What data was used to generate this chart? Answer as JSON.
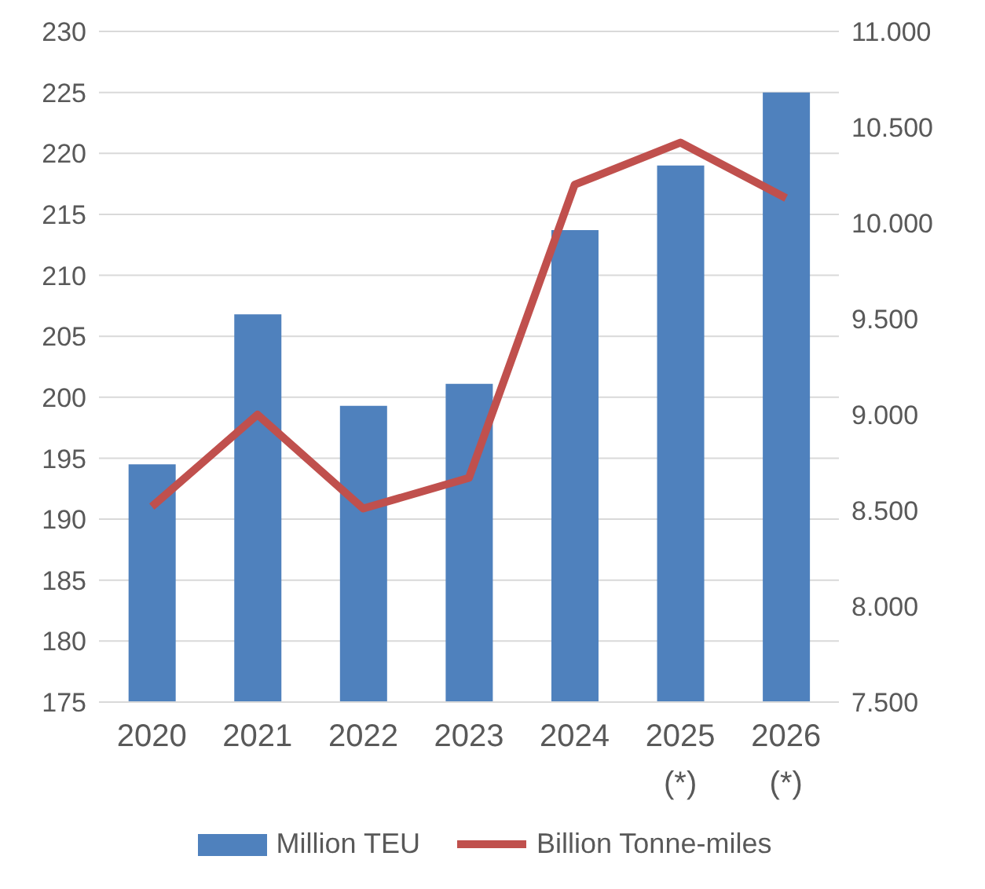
{
  "chart_data": {
    "type": "bar",
    "categories": [
      "2020",
      "2021",
      "2022",
      "2023",
      "2024",
      "2025\n(*)",
      "2026\n(*)"
    ],
    "series": [
      {
        "name": "Million TEU",
        "color": "#4f81bd",
        "values": [
          194.5,
          206.8,
          199.3,
          201.1,
          213.7,
          219.0,
          225.0
        ]
      },
      {
        "name": "Billion Tonne-miles",
        "type": "line",
        "axis": "y2",
        "color": "#c0504d",
        "values": [
          8520,
          9000,
          8510,
          8670,
          10200,
          10420,
          10130
        ]
      }
    ],
    "ylim": [
      175,
      230
    ],
    "yticks": [
      175,
      180,
      185,
      190,
      195,
      200,
      205,
      210,
      215,
      220,
      225,
      230
    ],
    "y2lim": [
      7500,
      11000
    ],
    "y2ticks": [
      {
        "value": 7500,
        "label": "7.500"
      },
      {
        "value": 8000,
        "label": "8.000"
      },
      {
        "value": 8500,
        "label": "8.500"
      },
      {
        "value": 9000,
        "label": "9.000"
      },
      {
        "value": 9500,
        "label": "9.500"
      },
      {
        "value": 10000,
        "label": "10.000"
      },
      {
        "value": 10500,
        "label": "10.500"
      },
      {
        "value": 11000,
        "label": "11.000"
      }
    ],
    "grid": "y",
    "legend": "bottom",
    "marker": "none"
  }
}
